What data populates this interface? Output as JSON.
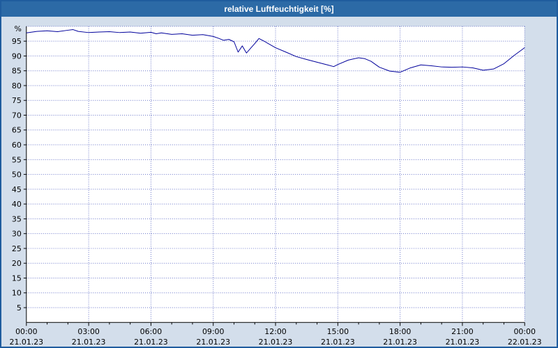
{
  "title": "relative Luftfeuchtigkeit [%]",
  "colors": {
    "titlebar": "#2c6aa6",
    "window_border": "#1f5c9e",
    "background": "#d3deeb",
    "plot_background": "#ffffff",
    "grid": "#6672c8",
    "line": "#00009b",
    "axis": "#000000",
    "title_text": "#ffffff"
  },
  "chart_data": {
    "type": "line",
    "title": "relative Luftfeuchtigkeit [%]",
    "xlabel": "",
    "ylabel": "%",
    "ylim": [
      0,
      100
    ],
    "ytick_step": 5,
    "yticks": [
      5,
      10,
      15,
      20,
      25,
      30,
      35,
      40,
      45,
      50,
      55,
      60,
      65,
      70,
      75,
      80,
      85,
      90,
      95
    ],
    "grid": "dotted",
    "legend": "none",
    "xticks": [
      {
        "hour": 0,
        "time": "00:00",
        "date": "21.01.23"
      },
      {
        "hour": 3,
        "time": "03:00",
        "date": "21.01.23"
      },
      {
        "hour": 6,
        "time": "06:00",
        "date": "21.01.23"
      },
      {
        "hour": 9,
        "time": "09:00",
        "date": "21.01.23"
      },
      {
        "hour": 12,
        "time": "12:00",
        "date": "21.01.23"
      },
      {
        "hour": 15,
        "time": "15:00",
        "date": "21.01.23"
      },
      {
        "hour": 18,
        "time": "18:00",
        "date": "21.01.23"
      },
      {
        "hour": 21,
        "time": "21:00",
        "date": "21.01.23"
      },
      {
        "hour": 24,
        "time": "00:00",
        "date": "22.01.23"
      }
    ],
    "series": [
      {
        "name": "relative Luftfeuchtigkeit",
        "x": [
          0,
          0.5,
          1,
          1.5,
          2,
          2.25,
          2.5,
          3,
          3.5,
          4,
          4.5,
          5,
          5.5,
          6,
          6.25,
          6.5,
          7,
          7.5,
          8,
          8.5,
          9,
          9.25,
          9.5,
          9.75,
          10,
          10.2,
          10.4,
          10.6,
          10.8,
          11,
          11.2,
          11.5,
          12,
          12.5,
          13,
          13.5,
          14,
          14.5,
          14.8,
          15,
          15.5,
          16,
          16.3,
          16.6,
          17,
          17.5,
          18,
          18.5,
          19,
          19.5,
          20,
          20.5,
          21,
          21.5,
          22,
          22.5,
          23,
          23.5,
          24
        ],
        "y": [
          97.8,
          98.3,
          98.5,
          98.2,
          98.7,
          98.9,
          98.3,
          97.9,
          98.1,
          98.2,
          97.9,
          98.1,
          97.7,
          98.0,
          97.5,
          97.8,
          97.3,
          97.5,
          97.0,
          97.2,
          96.6,
          96.0,
          95.3,
          95.6,
          94.8,
          91.3,
          93.4,
          91.0,
          92.6,
          94.2,
          95.9,
          94.8,
          92.8,
          91.3,
          89.8,
          88.8,
          87.9,
          87.0,
          86.4,
          87.1,
          88.6,
          89.4,
          89.1,
          88.2,
          86.2,
          84.9,
          84.5,
          86.0,
          87.0,
          86.7,
          86.3,
          86.2,
          86.3,
          86.0,
          85.2,
          85.6,
          87.4,
          90.2,
          92.8
        ]
      }
    ]
  }
}
